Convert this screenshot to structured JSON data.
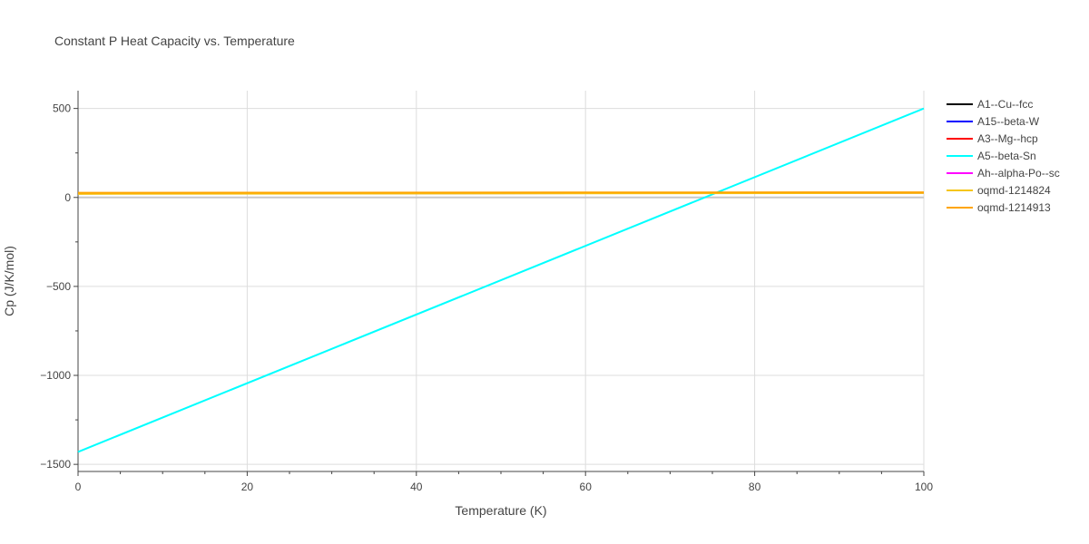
{
  "chart_data": {
    "type": "line",
    "title": "Constant P Heat Capacity vs. Temperature",
    "xlabel": "Temperature (K)",
    "ylabel": "Cp (J/K/mol)",
    "xlim": [
      0,
      100
    ],
    "ylim": [
      -1540,
      600
    ],
    "x_ticks": [
      0,
      20,
      40,
      60,
      80,
      100
    ],
    "x_tick_labels": [
      "0",
      "20",
      "40",
      "60",
      "80",
      "100"
    ],
    "y_ticks": [
      -1500,
      -1000,
      -500,
      0,
      500
    ],
    "y_tick_labels": [
      "−1500",
      "−1000",
      "−500",
      "0",
      "500"
    ],
    "grid": true,
    "legend_position": "top-right",
    "series": [
      {
        "name": "A1--Cu--fcc",
        "color": "#000000",
        "x": [
          0,
          100
        ],
        "y": [
          24,
          27
        ]
      },
      {
        "name": "A15--beta-W",
        "color": "#0000ff",
        "x": [
          0,
          100
        ],
        "y": [
          22,
          26
        ]
      },
      {
        "name": "A3--Mg--hcp",
        "color": "#ff0000",
        "x": [
          0,
          100
        ],
        "y": [
          24,
          27
        ]
      },
      {
        "name": "A5--beta-Sn",
        "color": "#00ffff",
        "x": [
          0,
          100
        ],
        "y": [
          -1430,
          500
        ]
      },
      {
        "name": "Ah--alpha-Po--sc",
        "color": "#ff00ff",
        "x": [
          0,
          100
        ],
        "y": [
          23,
          26
        ]
      },
      {
        "name": "oqmd-1214824",
        "color": "#f5c518",
        "x": [
          0,
          100
        ],
        "y": [
          20,
          25
        ]
      },
      {
        "name": "oqmd-1214913",
        "color": "#ffa500",
        "x": [
          0,
          100
        ],
        "y": [
          26,
          29
        ]
      }
    ]
  }
}
